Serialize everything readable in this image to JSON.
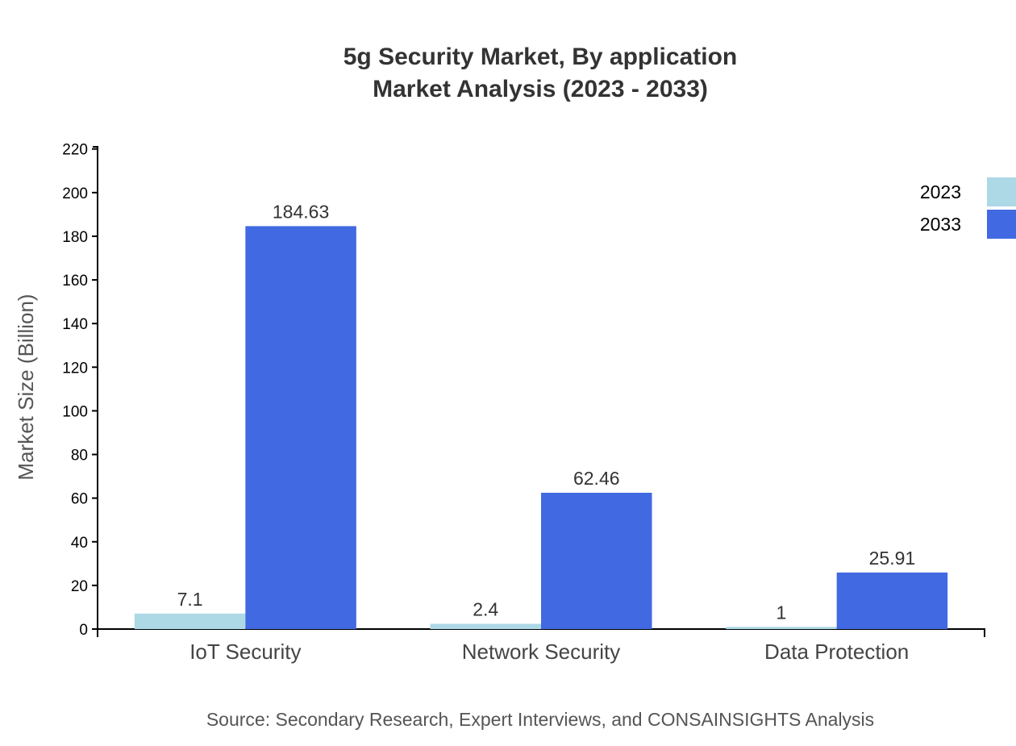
{
  "chart_data": {
    "type": "bar",
    "title": "5g Security Market, By application",
    "subtitle": "Market Analysis (2023 - 2033)",
    "xlabel": "",
    "ylabel": "Market Size (Billion)",
    "ylim": [
      0,
      221
    ],
    "yticks": [
      0,
      20,
      40,
      60,
      80,
      100,
      120,
      140,
      160,
      180,
      200,
      220
    ],
    "categories": [
      "IoT Security",
      "Network Security",
      "Data Protection"
    ],
    "series": [
      {
        "name": "2023",
        "color": "#add8e6",
        "values": [
          7.1,
          2.4,
          1
        ]
      },
      {
        "name": "2033",
        "color": "#4169e1",
        "values": [
          184.63,
          62.46,
          25.91
        ]
      }
    ],
    "legend": "top-right",
    "grid": false,
    "source": "Source: Secondary Research, Expert Interviews, and CONSAINSIGHTS Analysis"
  }
}
